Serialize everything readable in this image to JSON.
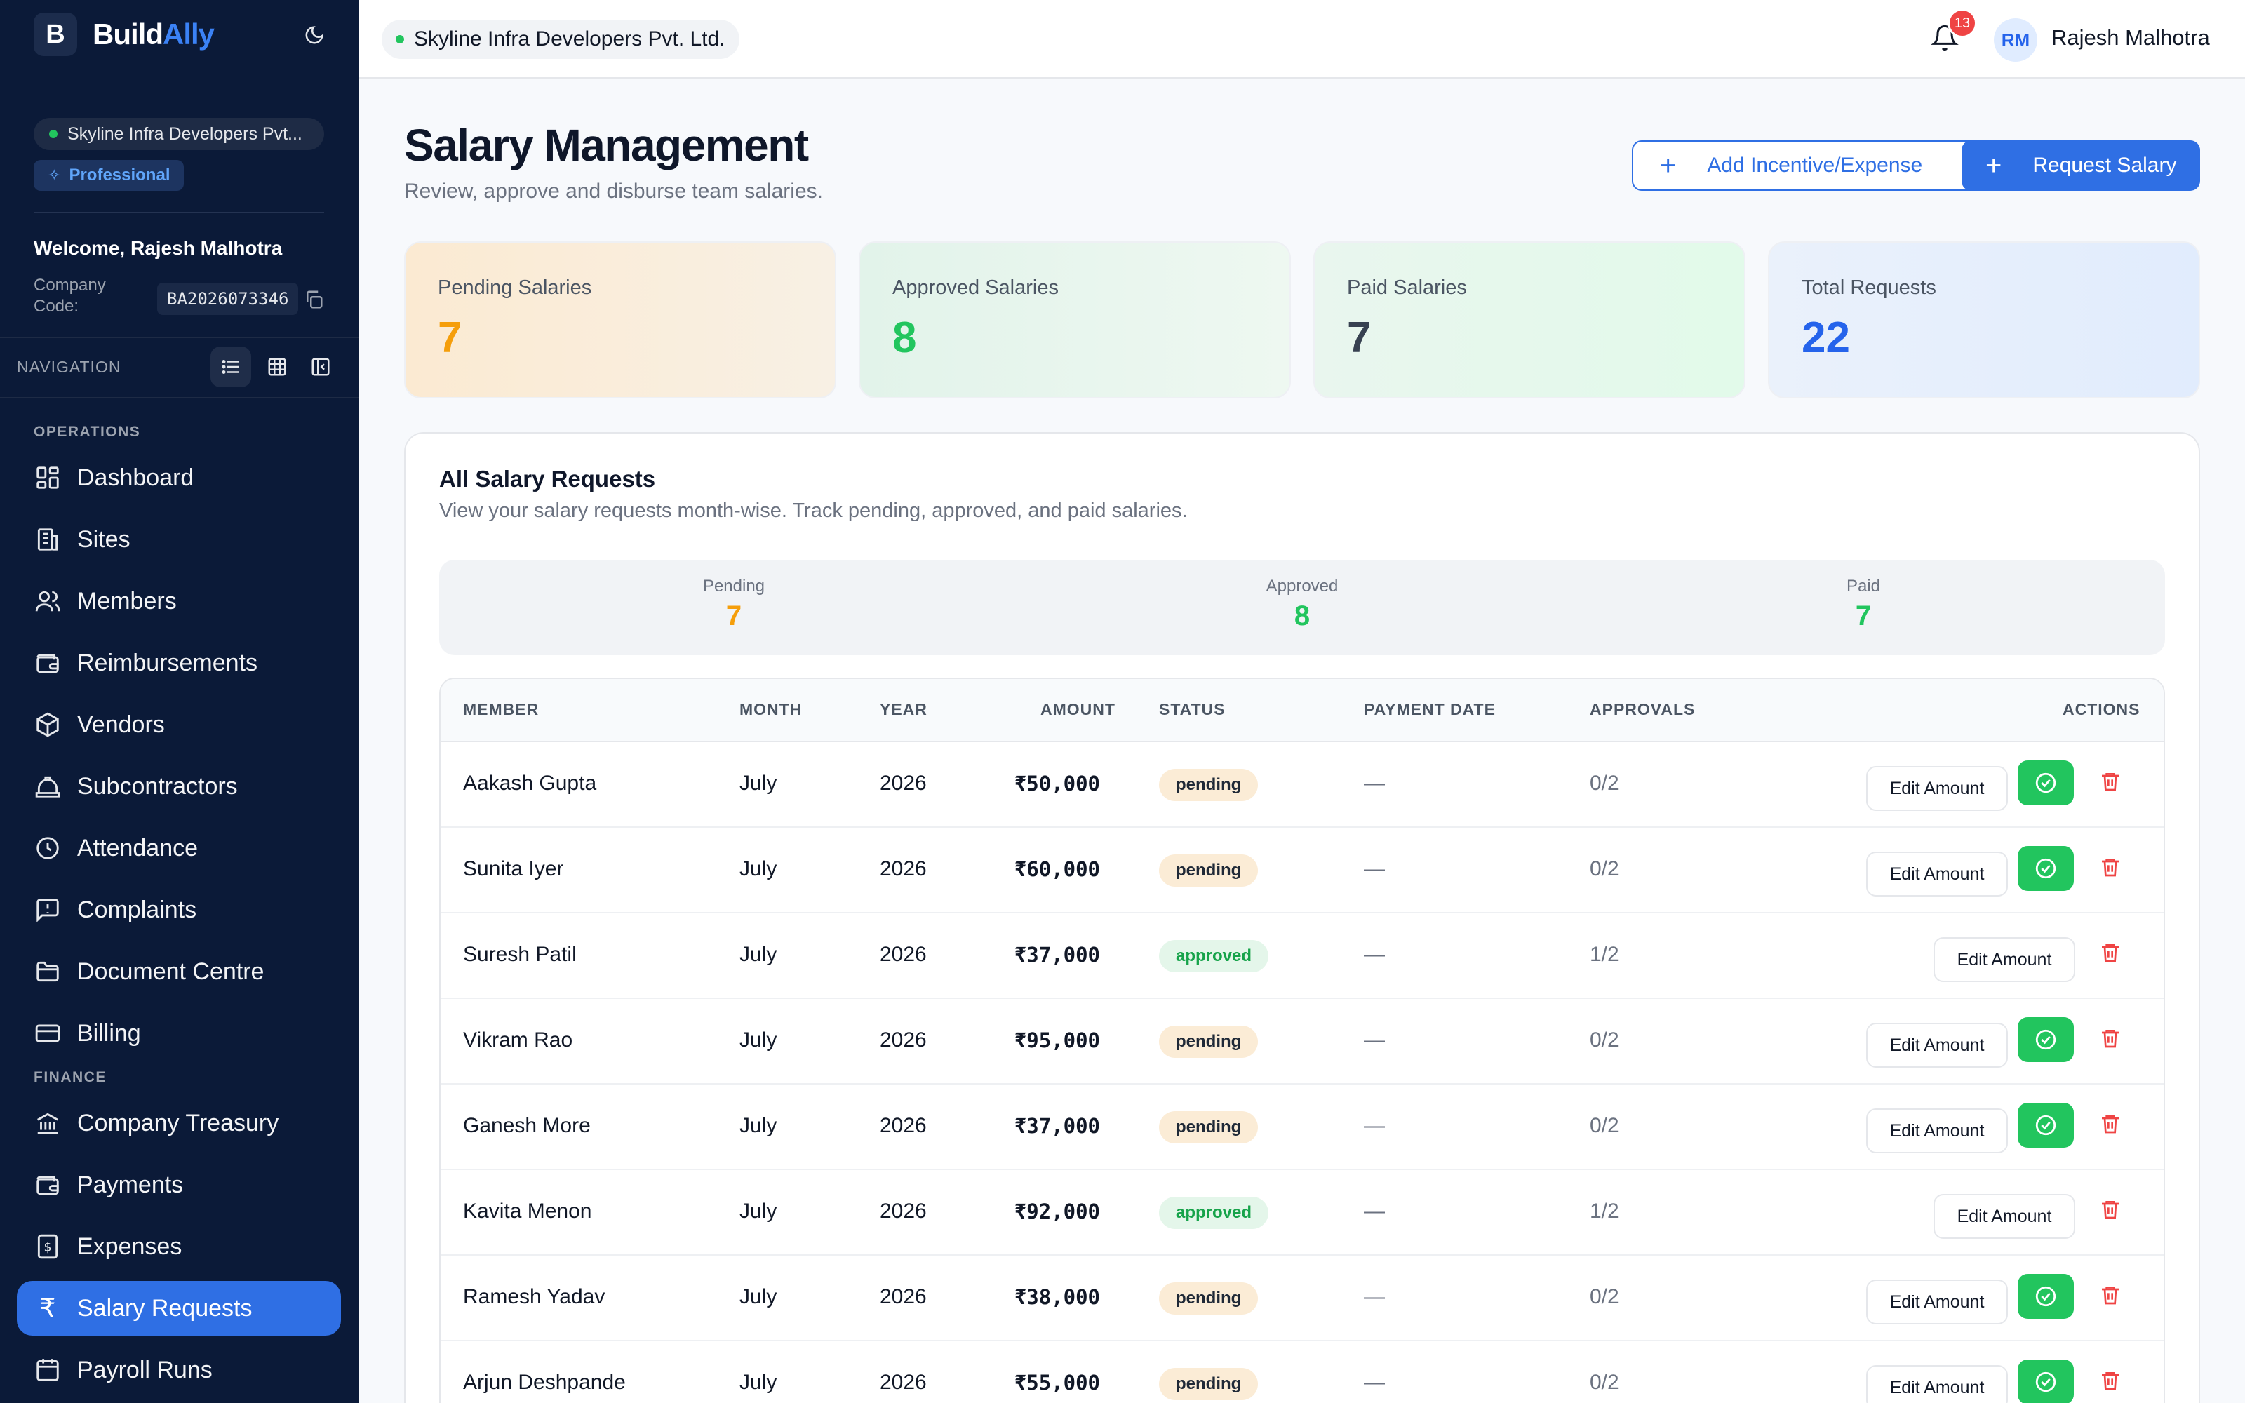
{
  "brand": {
    "part1": "Build",
    "part2": "Ally"
  },
  "sidebar": {
    "company_name": "Skyline Infra Developers Pvt...",
    "plan": "Professional",
    "welcome": "Welcome, Rajesh Malhotra",
    "company_code_label": "Company Code:",
    "company_code": "BA2026073346",
    "nav_title": "NAVIGATION",
    "operations_label": "OPERATIONS",
    "finance_label": "FINANCE",
    "items": [
      {
        "label": "Dashboard",
        "icon": "dashboard-icon"
      },
      {
        "label": "Sites",
        "icon": "building-icon"
      },
      {
        "label": "Members",
        "icon": "users-icon"
      },
      {
        "label": "Reimbursements",
        "icon": "wallet-icon"
      },
      {
        "label": "Vendors",
        "icon": "package-icon"
      },
      {
        "label": "Subcontractors",
        "icon": "hard-hat-icon"
      },
      {
        "label": "Attendance",
        "icon": "clock-icon"
      },
      {
        "label": "Complaints",
        "icon": "message-alert-icon"
      },
      {
        "label": "Document Centre",
        "icon": "folder-icon"
      },
      {
        "label": "Billing",
        "icon": "credit-card-icon"
      },
      {
        "label": "Company Treasury",
        "icon": "bank-icon"
      },
      {
        "label": "Payments",
        "icon": "wallet-icon"
      },
      {
        "label": "Expenses",
        "icon": "receipt-icon"
      },
      {
        "label": "Salary Requests",
        "icon": "rupee-icon"
      },
      {
        "label": "Payroll Runs",
        "icon": "calendar-icon"
      }
    ]
  },
  "topbar": {
    "company_name": "Skyline Infra Developers Pvt. Ltd.",
    "notifications": "13",
    "avatar_initials": "RM",
    "user_name": "Rajesh Malhotra"
  },
  "page": {
    "title": "Salary Management",
    "subtitle": "Review, approve and disburse team salaries.",
    "add_incentive_label": "Add Incentive/Expense",
    "request_salary_label": "Request Salary"
  },
  "stats": {
    "pending": {
      "label": "Pending Salaries",
      "value": "7"
    },
    "approved": {
      "label": "Approved Salaries",
      "value": "8"
    },
    "paid": {
      "label": "Paid Salaries",
      "value": "7"
    },
    "total": {
      "label": "Total Requests",
      "value": "22"
    }
  },
  "requests": {
    "title": "All Salary Requests",
    "subtitle": "View your salary requests month-wise. Track pending, approved, and paid salaries.",
    "summary": {
      "pending": {
        "label": "Pending",
        "value": "7"
      },
      "approved": {
        "label": "Approved",
        "value": "8"
      },
      "paid": {
        "label": "Paid",
        "value": "7"
      }
    },
    "columns": {
      "member": "MEMBER",
      "month": "MONTH",
      "year": "YEAR",
      "amount": "AMOUNT",
      "status": "STATUS",
      "payment_date": "PAYMENT DATE",
      "approvals": "APPROVALS",
      "actions": "ACTIONS"
    },
    "edit_label": "Edit Amount",
    "rows": [
      {
        "member": "Aakash Gupta",
        "month": "July",
        "year": "2026",
        "amount": "₹50,000",
        "status": "pending",
        "payment_date": "—",
        "approvals": "0/2"
      },
      {
        "member": "Sunita Iyer",
        "month": "July",
        "year": "2026",
        "amount": "₹60,000",
        "status": "pending",
        "payment_date": "—",
        "approvals": "0/2"
      },
      {
        "member": "Suresh Patil",
        "month": "July",
        "year": "2026",
        "amount": "₹37,000",
        "status": "approved",
        "payment_date": "—",
        "approvals": "1/2"
      },
      {
        "member": "Vikram Rao",
        "month": "July",
        "year": "2026",
        "amount": "₹95,000",
        "status": "pending",
        "payment_date": "—",
        "approvals": "0/2"
      },
      {
        "member": "Ganesh More",
        "month": "July",
        "year": "2026",
        "amount": "₹37,000",
        "status": "pending",
        "payment_date": "—",
        "approvals": "0/2"
      },
      {
        "member": "Kavita Menon",
        "month": "July",
        "year": "2026",
        "amount": "₹92,000",
        "status": "approved",
        "payment_date": "—",
        "approvals": "1/2"
      },
      {
        "member": "Ramesh Yadav",
        "month": "July",
        "year": "2026",
        "amount": "₹38,000",
        "status": "pending",
        "payment_date": "—",
        "approvals": "0/2"
      },
      {
        "member": "Arjun Deshpande",
        "month": "July",
        "year": "2026",
        "amount": "₹55,000",
        "status": "pending",
        "payment_date": "—",
        "approvals": "0/2"
      }
    ]
  },
  "colors": {
    "sidebar_bg": "#0b1a38",
    "accent": "#2f6fe4",
    "pending": "#f59e0b",
    "approved": "#22c55e",
    "total": "#2563eb",
    "danger": "#ef4444"
  }
}
